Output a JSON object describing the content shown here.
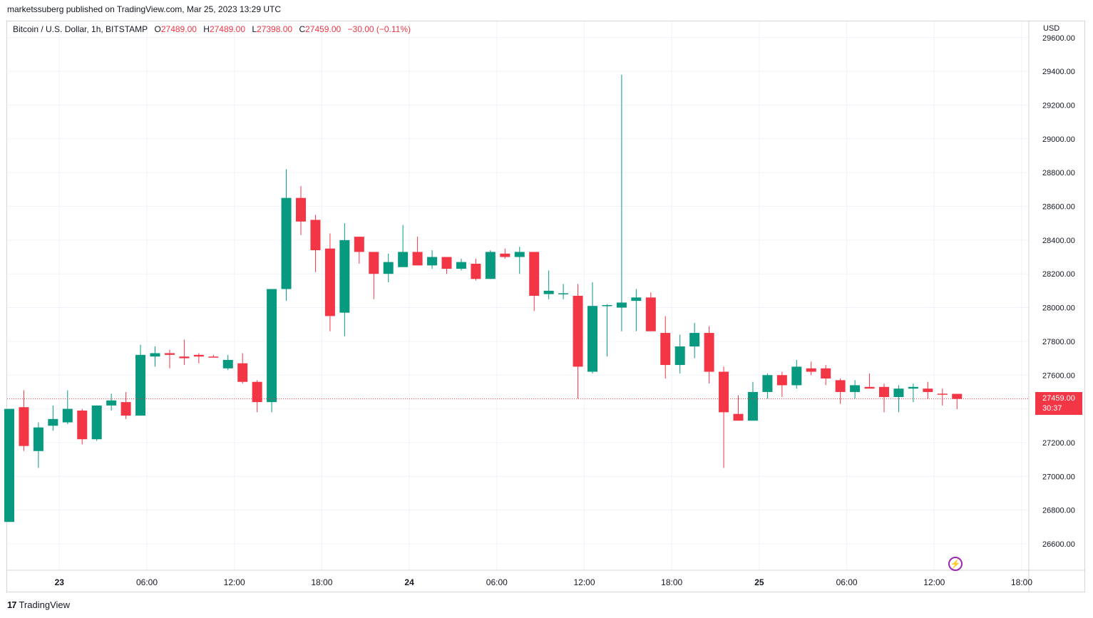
{
  "header": {
    "publisher_line": "marketssuberg published on TradingView.com, Mar 25, 2023 13:29 UTC"
  },
  "legend": {
    "symbol": "Bitcoin / U.S. Dollar, 1h, BITSTAMP",
    "o_label": "O",
    "o_value": "27489.00",
    "h_label": "H",
    "h_value": "27489.00",
    "l_label": "L",
    "l_value": "27398.00",
    "c_label": "C",
    "c_value": "27459.00",
    "change": "−30.00 (−0.11%)"
  },
  "price_axis": {
    "currency": "USD",
    "last_price": "27459.00",
    "countdown": "30:37"
  },
  "footer": {
    "brand": "TradingView"
  },
  "colors": {
    "up": "#089981",
    "down": "#f23645",
    "grid": "#f0f3fa",
    "text": "#131722",
    "last_price_line": "#f23645",
    "bolt": "#9c27b0"
  },
  "icons": {
    "bolt": "lightning-bolt-icon",
    "brand": "tradingview-logo-icon"
  },
  "chart_data": {
    "type": "candlestick",
    "symbol": "BTCUSD",
    "interval": "1h",
    "y_ticks": [
      26600,
      26800,
      27000,
      27200,
      27400,
      27600,
      27800,
      28000,
      28200,
      28400,
      28600,
      28800,
      29000,
      29200,
      29400,
      29600
    ],
    "y_tick_labels": [
      "26600.00",
      "26800.00",
      "27000.00",
      "27200.00",
      "27400.00",
      "27600.00",
      "27800.00",
      "28000.00",
      "28200.00",
      "28400.00",
      "28600.00",
      "28800.00",
      "29000.00",
      "29200.00",
      "29400.00",
      "29600.00"
    ],
    "x_ticks": [
      {
        "label": "23",
        "bold": true,
        "index": 4
      },
      {
        "label": "06:00",
        "bold": false,
        "index": 10
      },
      {
        "label": "12:00",
        "bold": false,
        "index": 16
      },
      {
        "label": "18:00",
        "bold": false,
        "index": 22
      },
      {
        "label": "24",
        "bold": true,
        "index": 28
      },
      {
        "label": "06:00",
        "bold": false,
        "index": 34
      },
      {
        "label": "12:00",
        "bold": false,
        "index": 40
      },
      {
        "label": "18:00",
        "bold": false,
        "index": 46
      },
      {
        "label": "25",
        "bold": true,
        "index": 52
      },
      {
        "label": "06:00",
        "bold": false,
        "index": 58
      },
      {
        "label": "12:00",
        "bold": false,
        "index": 64
      },
      {
        "label": "18:00",
        "bold": false,
        "index": 70
      }
    ],
    "last_price": 27459,
    "candles": [
      {
        "o": 26730,
        "h": 27400,
        "l": 26730,
        "c": 27400
      },
      {
        "o": 27410,
        "h": 27510,
        "l": 27150,
        "c": 27180
      },
      {
        "o": 27150,
        "h": 27320,
        "l": 27050,
        "c": 27290
      },
      {
        "o": 27300,
        "h": 27420,
        "l": 27270,
        "c": 27340
      },
      {
        "o": 27320,
        "h": 27510,
        "l": 27310,
        "c": 27400
      },
      {
        "o": 27390,
        "h": 27400,
        "l": 27190,
        "c": 27220
      },
      {
        "o": 27220,
        "h": 27420,
        "l": 27210,
        "c": 27420
      },
      {
        "o": 27420,
        "h": 27490,
        "l": 27390,
        "c": 27450
      },
      {
        "o": 27440,
        "h": 27500,
        "l": 27340,
        "c": 27360
      },
      {
        "o": 27360,
        "h": 27780,
        "l": 27360,
        "c": 27720
      },
      {
        "o": 27710,
        "h": 27770,
        "l": 27650,
        "c": 27730
      },
      {
        "o": 27730,
        "h": 27750,
        "l": 27640,
        "c": 27720
      },
      {
        "o": 27710,
        "h": 27810,
        "l": 27660,
        "c": 27700
      },
      {
        "o": 27720,
        "h": 27730,
        "l": 27670,
        "c": 27710
      },
      {
        "o": 27710,
        "h": 27720,
        "l": 27705,
        "c": 27705
      },
      {
        "o": 27640,
        "h": 27720,
        "l": 27630,
        "c": 27690
      },
      {
        "o": 27670,
        "h": 27730,
        "l": 27550,
        "c": 27560
      },
      {
        "o": 27560,
        "h": 27570,
        "l": 27380,
        "c": 27440
      },
      {
        "o": 27440,
        "h": 28110,
        "l": 27380,
        "c": 28110
      },
      {
        "o": 28110,
        "h": 28820,
        "l": 28040,
        "c": 28650
      },
      {
        "o": 28650,
        "h": 28720,
        "l": 28430,
        "c": 28510
      },
      {
        "o": 28520,
        "h": 28550,
        "l": 28210,
        "c": 28340
      },
      {
        "o": 28350,
        "h": 28440,
        "l": 27860,
        "c": 27950
      },
      {
        "o": 27970,
        "h": 28500,
        "l": 27830,
        "c": 28400
      },
      {
        "o": 28420,
        "h": 28420,
        "l": 28260,
        "c": 28330
      },
      {
        "o": 28330,
        "h": 28330,
        "l": 28050,
        "c": 28200
      },
      {
        "o": 28200,
        "h": 28320,
        "l": 28150,
        "c": 28270
      },
      {
        "o": 28240,
        "h": 28490,
        "l": 28240,
        "c": 28330
      },
      {
        "o": 28330,
        "h": 28420,
        "l": 28250,
        "c": 28250
      },
      {
        "o": 28250,
        "h": 28340,
        "l": 28230,
        "c": 28300
      },
      {
        "o": 28300,
        "h": 28300,
        "l": 28200,
        "c": 28230
      },
      {
        "o": 28230,
        "h": 28290,
        "l": 28220,
        "c": 28270
      },
      {
        "o": 28260,
        "h": 28290,
        "l": 28160,
        "c": 28170
      },
      {
        "o": 28170,
        "h": 28340,
        "l": 28170,
        "c": 28330
      },
      {
        "o": 28320,
        "h": 28350,
        "l": 28290,
        "c": 28300
      },
      {
        "o": 28300,
        "h": 28360,
        "l": 28200,
        "c": 28330
      },
      {
        "o": 28330,
        "h": 28330,
        "l": 27980,
        "c": 28070
      },
      {
        "o": 28080,
        "h": 28220,
        "l": 28050,
        "c": 28100
      },
      {
        "o": 28080,
        "h": 28140,
        "l": 28050,
        "c": 28085
      },
      {
        "o": 28070,
        "h": 28140,
        "l": 27460,
        "c": 27650
      },
      {
        "o": 27620,
        "h": 28150,
        "l": 27610,
        "c": 28010
      },
      {
        "o": 28010,
        "h": 28020,
        "l": 27710,
        "c": 28015
      },
      {
        "o": 28000,
        "h": 29380,
        "l": 27860,
        "c": 28030
      },
      {
        "o": 28040,
        "h": 28110,
        "l": 27860,
        "c": 28060
      },
      {
        "o": 28060,
        "h": 28090,
        "l": 27860,
        "c": 27860
      },
      {
        "o": 27850,
        "h": 27950,
        "l": 27580,
        "c": 27660
      },
      {
        "o": 27660,
        "h": 27840,
        "l": 27610,
        "c": 27770
      },
      {
        "o": 27770,
        "h": 27910,
        "l": 27700,
        "c": 27850
      },
      {
        "o": 27850,
        "h": 27890,
        "l": 27550,
        "c": 27620
      },
      {
        "o": 27620,
        "h": 27650,
        "l": 27050,
        "c": 27380
      },
      {
        "o": 27370,
        "h": 27480,
        "l": 27330,
        "c": 27330
      },
      {
        "o": 27330,
        "h": 27560,
        "l": 27330,
        "c": 27500
      },
      {
        "o": 27500,
        "h": 27610,
        "l": 27460,
        "c": 27600
      },
      {
        "o": 27600,
        "h": 27620,
        "l": 27470,
        "c": 27540
      },
      {
        "o": 27540,
        "h": 27690,
        "l": 27520,
        "c": 27650
      },
      {
        "o": 27640,
        "h": 27680,
        "l": 27600,
        "c": 27620
      },
      {
        "o": 27640,
        "h": 27660,
        "l": 27540,
        "c": 27580
      },
      {
        "o": 27570,
        "h": 27580,
        "l": 27430,
        "c": 27500
      },
      {
        "o": 27500,
        "h": 27570,
        "l": 27460,
        "c": 27540
      },
      {
        "o": 27530,
        "h": 27610,
        "l": 27520,
        "c": 27520
      },
      {
        "o": 27530,
        "h": 27550,
        "l": 27380,
        "c": 27470
      },
      {
        "o": 27470,
        "h": 27540,
        "l": 27380,
        "c": 27520
      },
      {
        "o": 27520,
        "h": 27550,
        "l": 27440,
        "c": 27530
      },
      {
        "o": 27520,
        "h": 27560,
        "l": 27460,
        "c": 27500
      },
      {
        "o": 27490,
        "h": 27520,
        "l": 27420,
        "c": 27485
      },
      {
        "o": 27489,
        "h": 27489,
        "l": 27398,
        "c": 27459
      }
    ]
  }
}
